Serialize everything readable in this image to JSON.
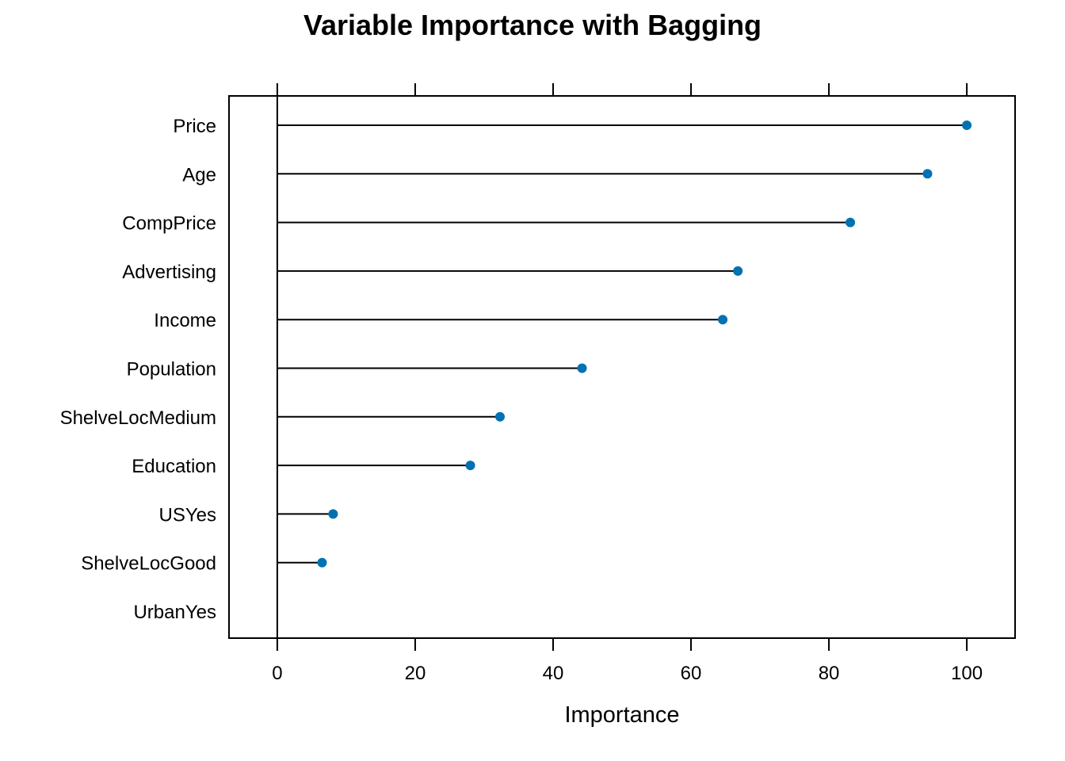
{
  "chart_data": {
    "type": "dot",
    "title": "Variable Importance with Bagging",
    "xlabel": "Importance",
    "ylabel": "",
    "xlim": [
      -7,
      107
    ],
    "xticks": [
      0,
      20,
      40,
      60,
      80,
      100
    ],
    "categories": [
      "Price",
      "Age",
      "CompPrice",
      "Advertising",
      "Income",
      "Population",
      "ShelveLocMedium",
      "Education",
      "USYes",
      "ShelveLocGood",
      "UrbanYes"
    ],
    "values": [
      100,
      94.3,
      83.1,
      66.8,
      64.6,
      44.2,
      32.3,
      28.0,
      8.1,
      6.5,
      0
    ],
    "point_color": "#0072B2",
    "grid": false,
    "legend": "none"
  }
}
